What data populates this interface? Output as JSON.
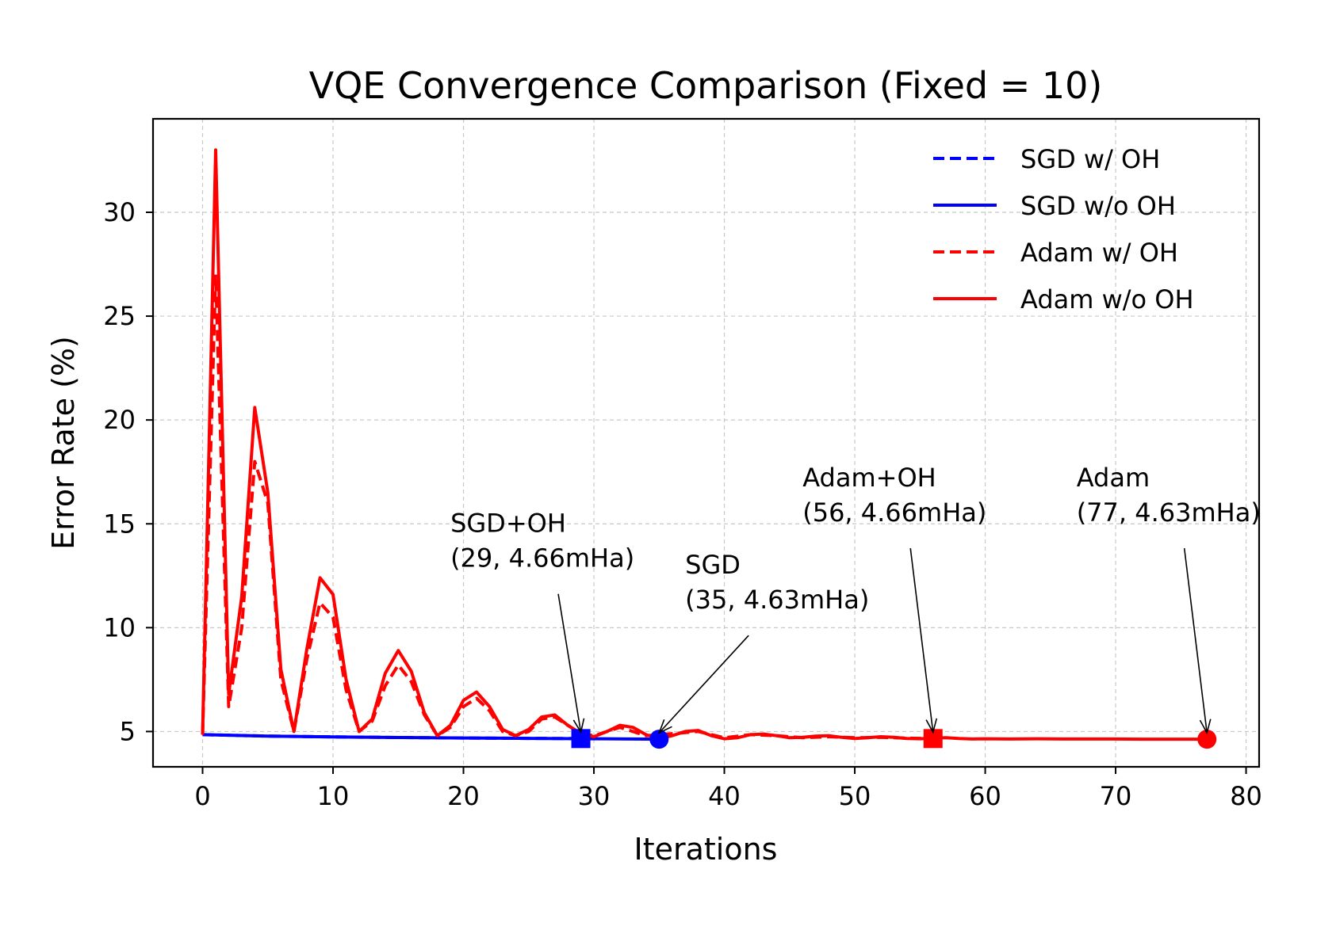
{
  "chart_data": {
    "type": "line",
    "title": "VQE Convergence Comparison (Fixed = 10)",
    "xlabel": "Iterations",
    "ylabel": "Error Rate (%)",
    "xlim": [
      -3.8,
      81
    ],
    "ylim": [
      3.3,
      34.5
    ],
    "xticks": [
      0,
      10,
      20,
      30,
      40,
      50,
      60,
      70,
      80
    ],
    "yticks": [
      5,
      10,
      15,
      20,
      25,
      30
    ],
    "grid": true,
    "legend_position": "top-right",
    "series": [
      {
        "name": "SGD w/ OH",
        "color": "#0000ff",
        "style": "dashed",
        "x": [
          0,
          5,
          10,
          15,
          20,
          25,
          29
        ],
        "y": [
          4.85,
          4.78,
          4.74,
          4.71,
          4.69,
          4.67,
          4.66
        ]
      },
      {
        "name": "SGD w/o OH",
        "color": "#0000ff",
        "style": "solid",
        "x": [
          0,
          5,
          10,
          15,
          20,
          25,
          30,
          35
        ],
        "y": [
          4.85,
          4.78,
          4.74,
          4.71,
          4.69,
          4.67,
          4.65,
          4.63
        ]
      },
      {
        "name": "Adam w/ OH",
        "color": "#ff0000",
        "style": "dashed",
        "x": [
          0,
          1,
          2,
          3,
          4,
          5,
          6,
          7,
          8,
          9,
          10,
          11,
          12,
          13,
          14,
          15,
          16,
          17,
          18,
          19,
          20,
          21,
          22,
          23,
          24,
          25,
          26,
          27,
          28,
          29,
          30,
          32,
          34,
          36,
          38,
          40,
          42,
          44,
          46,
          48,
          50,
          52,
          54,
          56
        ],
        "y": [
          4.85,
          27.0,
          6.2,
          10.0,
          18.0,
          16.0,
          7.5,
          5.0,
          8.5,
          11.2,
          10.5,
          7.0,
          5.0,
          5.5,
          7.2,
          8.2,
          7.4,
          5.8,
          4.8,
          5.2,
          6.2,
          6.6,
          6.0,
          5.0,
          4.8,
          5.0,
          5.6,
          5.7,
          5.3,
          4.9,
          4.8,
          5.2,
          4.8,
          4.9,
          5.0,
          4.7,
          4.85,
          4.8,
          4.7,
          4.75,
          4.7,
          4.72,
          4.68,
          4.66
        ]
      },
      {
        "name": "Adam w/o OH",
        "color": "#ff0000",
        "style": "solid",
        "x": [
          0,
          1,
          2,
          3,
          4,
          5,
          6,
          7,
          8,
          9,
          10,
          11,
          12,
          13,
          14,
          15,
          16,
          17,
          18,
          19,
          20,
          21,
          22,
          23,
          24,
          25,
          26,
          27,
          28,
          29,
          30,
          31,
          32,
          33,
          34,
          35,
          36,
          37,
          38,
          39,
          40,
          41,
          42,
          43,
          44,
          45,
          46,
          47,
          48,
          49,
          50,
          51,
          52,
          53,
          54,
          55,
          56,
          57,
          58,
          59,
          60,
          62,
          64,
          66,
          68,
          70,
          72,
          74,
          77
        ],
        "y": [
          4.85,
          33.0,
          6.8,
          11.5,
          20.6,
          16.5,
          8.0,
          5.0,
          9.0,
          12.4,
          11.6,
          7.5,
          5.0,
          5.6,
          7.8,
          8.9,
          7.9,
          5.9,
          4.8,
          5.3,
          6.5,
          6.9,
          6.2,
          5.1,
          4.8,
          5.1,
          5.7,
          5.8,
          5.3,
          4.9,
          4.75,
          5.0,
          5.3,
          5.2,
          4.85,
          4.65,
          4.8,
          5.0,
          5.05,
          4.8,
          4.65,
          4.7,
          4.85,
          4.88,
          4.8,
          4.7,
          4.72,
          4.78,
          4.8,
          4.72,
          4.66,
          4.7,
          4.75,
          4.72,
          4.66,
          4.65,
          4.68,
          4.7,
          4.66,
          4.64,
          4.65,
          4.64,
          4.65,
          4.64,
          4.64,
          4.64,
          4.63,
          4.63,
          4.63
        ]
      }
    ],
    "markers": [
      {
        "name": "SGD+OH",
        "x": 29,
        "y": 4.66,
        "shape": "square",
        "color": "#0000ff"
      },
      {
        "name": "SGD",
        "x": 35,
        "y": 4.63,
        "shape": "circle",
        "color": "#0000ff"
      },
      {
        "name": "Adam+OH",
        "x": 56,
        "y": 4.66,
        "shape": "square",
        "color": "#ff0000"
      },
      {
        "name": "Adam",
        "x": 77,
        "y": 4.63,
        "shape": "circle",
        "color": "#ff0000"
      }
    ],
    "annotations": [
      {
        "line1": "SGD+OH",
        "line2": "(29, 4.66mHa)",
        "text_x": 19,
        "text_y": 14.6,
        "target_x": 29,
        "target_y": 4.66
      },
      {
        "line1": "SGD",
        "line2": "(35, 4.63mHa)",
        "text_x": 37,
        "text_y": 12.6,
        "target_x": 35,
        "target_y": 4.63
      },
      {
        "line1": "Adam+OH",
        "line2": "(56, 4.66mHa)",
        "text_x": 46,
        "text_y": 16.8,
        "target_x": 56,
        "target_y": 4.66
      },
      {
        "line1": "Adam",
        "line2": "(77, 4.63mHa)",
        "text_x": 67,
        "text_y": 16.8,
        "target_x": 77,
        "target_y": 4.63
      }
    ]
  }
}
